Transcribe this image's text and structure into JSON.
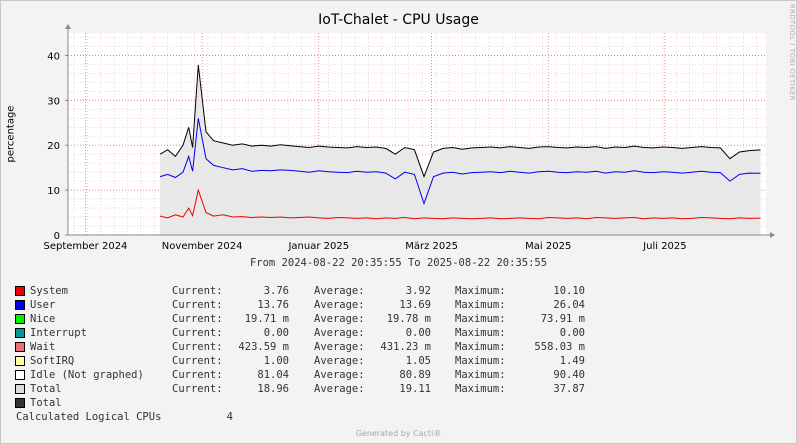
{
  "chart_data": {
    "type": "area",
    "title": "IoT-Chalet - CPU Usage",
    "ylabel": "percentage",
    "ylim": [
      0,
      45
    ],
    "yticks": [
      0,
      10,
      20,
      30,
      40
    ],
    "grid": true,
    "x_range": [
      "2024-08-22 20:35:55",
      "2025-08-22 20:35:55"
    ],
    "x_tick_labels": [
      {
        "label": "September 2024",
        "date": "2024-09-01"
      },
      {
        "label": "November 2024",
        "date": "2024-11-01"
      },
      {
        "label": "Januar 2025",
        "date": "2025-01-01"
      },
      {
        "label": "März 2025",
        "date": "2025-03-01"
      },
      {
        "label": "Mai 2025",
        "date": "2025-05-01"
      },
      {
        "label": "Juli 2025",
        "date": "2025-07-01"
      }
    ],
    "x": [
      "2024-10-10",
      "2024-10-14",
      "2024-10-18",
      "2024-10-22",
      "2024-10-25",
      "2024-10-27",
      "2024-10-30",
      "2024-11-03",
      "2024-11-07",
      "2024-11-12",
      "2024-11-17",
      "2024-11-22",
      "2024-11-27",
      "2024-12-02",
      "2024-12-07",
      "2024-12-12",
      "2024-12-17",
      "2024-12-22",
      "2024-12-27",
      "2025-01-01",
      "2025-01-06",
      "2025-01-11",
      "2025-01-16",
      "2025-01-21",
      "2025-01-26",
      "2025-01-31",
      "2025-02-05",
      "2025-02-10",
      "2025-02-15",
      "2025-02-20",
      "2025-02-25",
      "2025-03-02",
      "2025-03-07",
      "2025-03-12",
      "2025-03-17",
      "2025-03-22",
      "2025-03-27",
      "2025-04-01",
      "2025-04-06",
      "2025-04-11",
      "2025-04-16",
      "2025-04-21",
      "2025-04-26",
      "2025-05-01",
      "2025-05-06",
      "2025-05-11",
      "2025-05-16",
      "2025-05-21",
      "2025-05-26",
      "2025-05-31",
      "2025-06-05",
      "2025-06-10",
      "2025-06-15",
      "2025-06-20",
      "2025-06-25",
      "2025-06-30",
      "2025-07-05",
      "2025-07-10",
      "2025-07-15",
      "2025-07-20",
      "2025-07-25",
      "2025-07-30",
      "2025-08-04",
      "2025-08-09",
      "2025-08-14",
      "2025-08-20"
    ],
    "series": [
      {
        "name": "System",
        "color": "#ee0000",
        "values": [
          4.2,
          3.8,
          4.5,
          4.0,
          6.0,
          4.3,
          10.0,
          5.0,
          4.2,
          4.5,
          4.0,
          4.1,
          3.9,
          4.0,
          3.9,
          4.0,
          3.8,
          3.9,
          4.0,
          3.8,
          3.7,
          3.9,
          3.8,
          3.7,
          3.8,
          3.6,
          3.8,
          3.7,
          3.9,
          3.6,
          3.8,
          3.7,
          3.6,
          3.8,
          3.7,
          3.6,
          3.7,
          3.8,
          3.6,
          3.7,
          3.8,
          3.7,
          3.6,
          3.9,
          3.8,
          3.7,
          3.8,
          3.6,
          3.9,
          3.8,
          3.7,
          3.8,
          3.9,
          3.6,
          3.8,
          3.7,
          3.8,
          3.6,
          3.7,
          3.9,
          3.8,
          3.7,
          3.6,
          3.8,
          3.7,
          3.76
        ]
      },
      {
        "name": "User",
        "color": "#0000ee",
        "values": [
          13.0,
          13.5,
          12.8,
          14.0,
          17.5,
          14.2,
          26.0,
          17.0,
          15.5,
          15.0,
          14.5,
          14.8,
          14.2,
          14.4,
          14.3,
          14.5,
          14.4,
          14.2,
          14.0,
          14.3,
          14.1,
          14.0,
          13.9,
          14.2,
          14.0,
          14.1,
          13.8,
          12.5,
          14.0,
          13.5,
          7.0,
          13.0,
          13.8,
          14.0,
          13.6,
          13.9,
          14.0,
          14.1,
          13.9,
          14.2,
          14.0,
          13.8,
          14.1,
          14.2,
          14.0,
          13.9,
          14.1,
          14.0,
          14.2,
          13.8,
          14.1,
          14.0,
          14.3,
          14.0,
          13.9,
          14.1,
          14.0,
          13.8,
          14.0,
          14.2,
          14.0,
          13.9,
          12.0,
          13.5,
          13.8,
          13.76
        ]
      },
      {
        "name": "Total",
        "color": "#000000",
        "values": [
          18.0,
          19.0,
          17.5,
          20.0,
          24.0,
          19.5,
          37.87,
          23.0,
          21.0,
          20.5,
          20.0,
          20.3,
          19.8,
          20.0,
          19.8,
          20.1,
          19.9,
          19.7,
          19.5,
          19.8,
          19.6,
          19.5,
          19.4,
          19.7,
          19.5,
          19.6,
          19.3,
          18.0,
          19.5,
          19.0,
          13.0,
          18.5,
          19.3,
          19.5,
          19.1,
          19.4,
          19.5,
          19.6,
          19.4,
          19.7,
          19.5,
          19.3,
          19.6,
          19.7,
          19.5,
          19.4,
          19.6,
          19.5,
          19.7,
          19.3,
          19.6,
          19.5,
          19.8,
          19.5,
          19.4,
          19.6,
          19.5,
          19.3,
          19.5,
          19.7,
          19.5,
          19.4,
          17.0,
          18.5,
          18.8,
          18.96
        ]
      }
    ],
    "total_area_color": "#e8e8e8"
  },
  "range_text": "From 2024-08-22 20:35:55 To 2025-08-22 20:35:55",
  "legend": [
    {
      "name": "System",
      "color": "#ee0000",
      "current_label": "Current:",
      "current": "3.76",
      "average_label": "Average:",
      "average": "3.92",
      "maximum_label": "Maximum:",
      "maximum": "10.10"
    },
    {
      "name": "User",
      "color": "#0000ee",
      "current_label": "Current:",
      "current": "13.76",
      "average_label": "Average:",
      "average": "13.69",
      "maximum_label": "Maximum:",
      "maximum": "26.04"
    },
    {
      "name": "Nice",
      "color": "#00ee00",
      "current_label": "Current:",
      "current": "19.71 m",
      "average_label": "Average:",
      "average": "19.78 m",
      "maximum_label": "Maximum:",
      "maximum": "73.91 m"
    },
    {
      "name": "Interrupt",
      "color": "#009999",
      "current_label": "Current:",
      "current": "0.00",
      "average_label": "Average:",
      "average": "0.00",
      "maximum_label": "Maximum:",
      "maximum": "0.00"
    },
    {
      "name": "Wait",
      "color": "#e86f7a",
      "current_label": "Current:",
      "current": "423.59 m",
      "average_label": "Average:",
      "average": "431.23 m",
      "maximum_label": "Maximum:",
      "maximum": "558.03 m"
    },
    {
      "name": "SoftIRQ",
      "color": "#ffff99",
      "current_label": "Current:",
      "current": "1.00",
      "average_label": "Average:",
      "average": "1.05",
      "maximum_label": "Maximum:",
      "maximum": "1.49"
    },
    {
      "name": "Idle (Not graphed)",
      "color": "#ffffff",
      "current_label": "Current:",
      "current": "81.04",
      "average_label": "Average:",
      "average": "80.89",
      "maximum_label": "Maximum:",
      "maximum": "90.40"
    },
    {
      "name": "Total",
      "color": "#dcdcdc",
      "current_label": "Current:",
      "current": "18.96",
      "average_label": "Average:",
      "average": "19.11",
      "maximum_label": "Maximum:",
      "maximum": "37.87"
    },
    {
      "name": "Total",
      "color": "#333333",
      "current_label": "",
      "current": "",
      "average_label": "",
      "average": "",
      "maximum_label": "",
      "maximum": ""
    }
  ],
  "calculated": {
    "label": "Calculated Logical CPUs",
    "value": "4"
  },
  "watermark": "RRDTOOL / TOBI OETIKER",
  "footer": "Generated by Cacti®"
}
